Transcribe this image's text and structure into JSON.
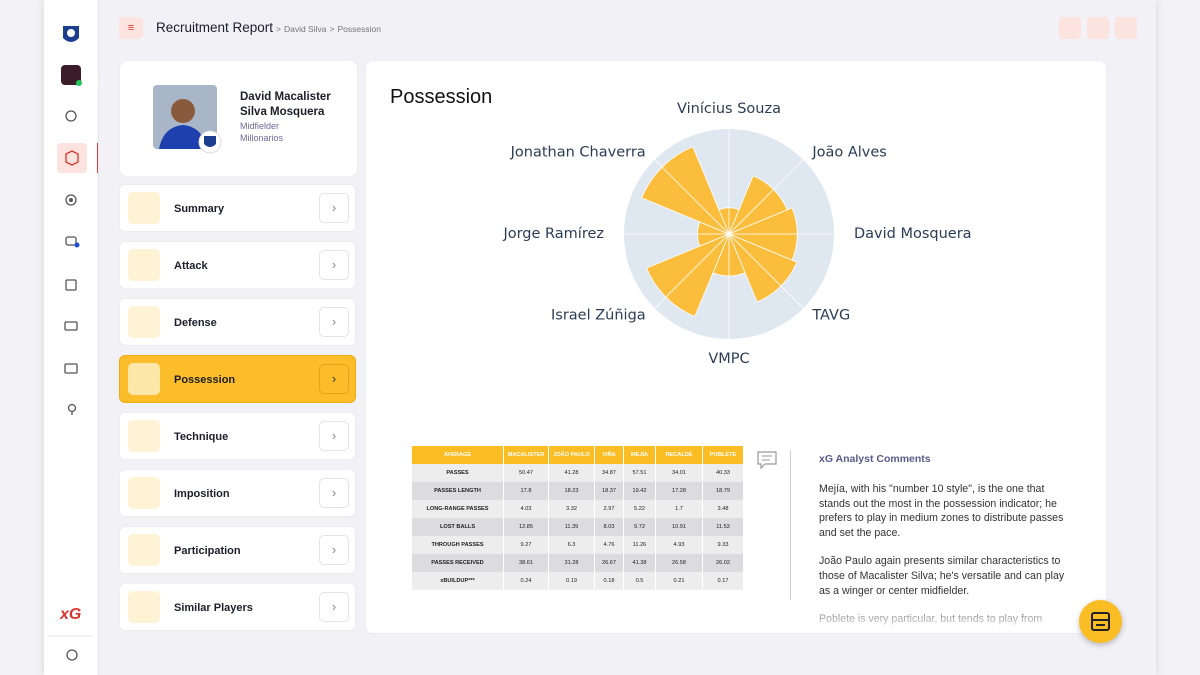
{
  "sidebar": {
    "brand": "xG"
  },
  "header": {
    "title": "Recruitment Report",
    "breadcrumb": [
      "David Silva",
      "Possession"
    ]
  },
  "player": {
    "name": "David Macalister Silva Mosquera",
    "position": "Midfielder",
    "club": "Millonarios"
  },
  "menu": [
    {
      "label": "Summary"
    },
    {
      "label": "Attack"
    },
    {
      "label": "Defense"
    },
    {
      "label": "Possession",
      "active": true
    },
    {
      "label": "Technique"
    },
    {
      "label": "Imposition"
    },
    {
      "label": "Participation"
    },
    {
      "label": "Similar Players"
    }
  ],
  "chart_data": {
    "type": "polar-area",
    "title": "Possession",
    "categories": [
      "Vinícius Souza",
      "João Alves",
      "David Mosquera",
      "TAVG",
      "VMPC",
      "Israel Zúñiga",
      "Jorge Ramírez",
      "Jonathan Chaverra"
    ],
    "values": [
      25,
      60,
      65,
      70,
      40,
      85,
      30,
      90
    ],
    "rlim": [
      0,
      100
    ],
    "color": "#fbbd3c"
  },
  "table": {
    "header": [
      "AVERAGE",
      "MACALISTER",
      "JOÃO PAULO",
      "VIÑA",
      "MEJÍA",
      "RECALDE",
      "POBLETE"
    ],
    "rows": [
      [
        "PASSES",
        50.47,
        41.28,
        34.87,
        57.51,
        34.01,
        40.33
      ],
      [
        "PASSES LENGTH",
        17.8,
        18.23,
        18.37,
        19.42,
        17.28,
        18.79
      ],
      [
        "LONG-RANGE PASSES",
        4.03,
        3.32,
        2.97,
        5.22,
        1.7,
        3.48
      ],
      [
        "LOST BALLS",
        12.85,
        11.39,
        8.03,
        9.72,
        10.91,
        11.53
      ],
      [
        "THROUGH PASSES",
        9.27,
        6.3,
        4.76,
        11.26,
        4.93,
        9.33
      ],
      [
        "PASSES RECEIVED",
        38.61,
        31.28,
        26.67,
        41.38,
        26.58,
        26.02
      ],
      [
        "xBUILDUP***",
        0.24,
        0.19,
        0.18,
        0.5,
        0.21,
        0.17
      ]
    ]
  },
  "comments": {
    "title": "xG Analyst Comments",
    "paragraphs": [
      "Mejía, with his \"number 10 style\", is the one that stands out the most in the possession indicator; he prefers to play in medium zones to distribute passes and set the pace.",
      "João Paulo again presents similar characteristics to those of Macalister Silva; he's versatile and can play as a winger or center midfielder.",
      "Poblete is very particular, but tends to play from"
    ]
  }
}
